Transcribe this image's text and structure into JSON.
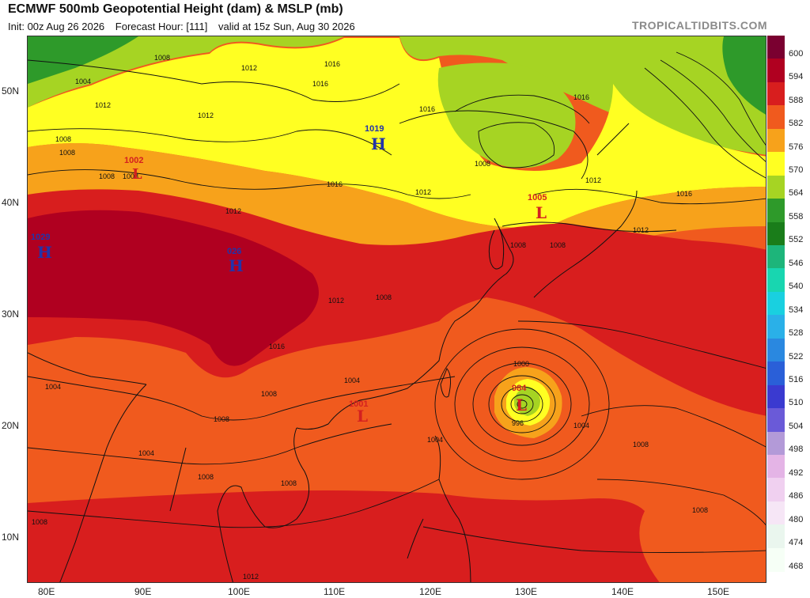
{
  "header": {
    "title": "ECMWF 500mb Geopotential Height (dam) & MSLP (mb)",
    "init": "Init: 00z Aug 26 2026",
    "forecast": "Forecast Hour: [111]",
    "valid": "valid at 15z Sun, Aug 30 2026",
    "brand": "TROPICALTIDBITS.COM"
  },
  "axes": {
    "latitudes": [
      "50N",
      "40N",
      "30N",
      "20N",
      "10N"
    ],
    "longitudes": [
      "80E",
      "90E",
      "100E",
      "110E",
      "120E",
      "130E",
      "140E",
      "150E"
    ]
  },
  "legend": {
    "levels": [
      {
        "label": "600",
        "color": "#7a0030"
      },
      {
        "label": "594",
        "color": "#b00020"
      },
      {
        "label": "588",
        "color": "#d81e1e"
      },
      {
        "label": "582",
        "color": "#f05a1e"
      },
      {
        "label": "576",
        "color": "#f7a21b"
      },
      {
        "label": "570",
        "color": "#ffff22"
      },
      {
        "label": "564",
        "color": "#a6d423"
      },
      {
        "label": "558",
        "color": "#2e9a2a"
      },
      {
        "label": "552",
        "color": "#1a7d1a"
      },
      {
        "label": "546",
        "color": "#1db57a"
      },
      {
        "label": "540",
        "color": "#18d6b0"
      },
      {
        "label": "534",
        "color": "#19d0e0"
      },
      {
        "label": "528",
        "color": "#2ab0e8"
      },
      {
        "label": "522",
        "color": "#2a88e0"
      },
      {
        "label": "516",
        "color": "#2a5fd8"
      },
      {
        "label": "510",
        "color": "#3a3ad0"
      },
      {
        "label": "504",
        "color": "#6a5ad8"
      },
      {
        "label": "498",
        "color": "#b39ad8"
      },
      {
        "label": "492",
        "color": "#e4b4e6"
      },
      {
        "label": "486",
        "color": "#f0d0f0"
      },
      {
        "label": "480",
        "color": "#f6e6f6"
      },
      {
        "label": "474",
        "color": "#eaf6ee"
      },
      {
        "label": "468",
        "color": "#f6fff6"
      }
    ]
  },
  "pressure_centers": [
    {
      "type": "H",
      "value": "1019",
      "color": "#2233aa"
    },
    {
      "type": "H",
      "value": "1029",
      "color": "#2233aa"
    },
    {
      "type": "H",
      "value": "026",
      "color": "#2233aa"
    },
    {
      "type": "L",
      "value": "1002",
      "color": "#d42020"
    },
    {
      "type": "L",
      "value": "1005",
      "color": "#d42020"
    },
    {
      "type": "L",
      "value": "1001",
      "color": "#d42020"
    },
    {
      "type": "L",
      "value": "984",
      "color": "#d42020"
    }
  ],
  "isobar_labels": [
    "1008",
    "1012",
    "1016",
    "1016",
    "1016",
    "1012",
    "1008",
    "1012",
    "1016",
    "1008",
    "1016",
    "1016",
    "1012",
    "1012",
    "1008",
    "1008",
    "1012",
    "1016",
    "1012",
    "1012",
    "1008",
    "1004",
    "1008",
    "1008",
    "1004",
    "1004",
    "1004",
    "1008",
    "1008",
    "1008",
    "1012",
    "1000",
    "996",
    "1004",
    "1008",
    "1008",
    "1008",
    "1004",
    "1008",
    "1008"
  ],
  "colors": {
    "isobar": "#111111"
  }
}
